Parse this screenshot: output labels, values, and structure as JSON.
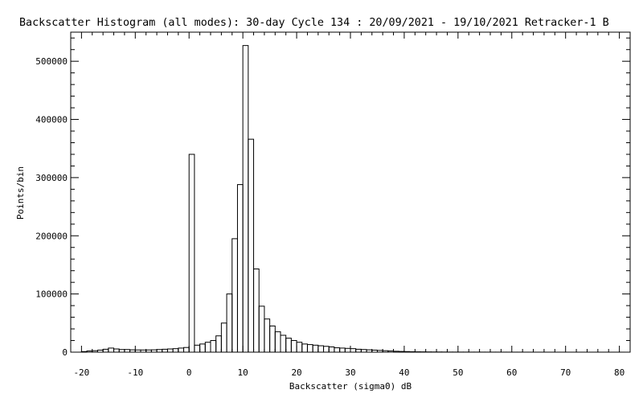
{
  "chart_data": {
    "type": "bar",
    "title": "Backscatter Histogram (all modes): 30-day Cycle 134 : 20/09/2021 - 19/10/2021 Retracker-1 B",
    "xlabel": "Backscatter (sigma0) dB",
    "ylabel": "Points/bin",
    "xlim": [
      -22,
      82
    ],
    "ylim": [
      0,
      550000
    ],
    "x_ticks": [
      -20,
      -10,
      0,
      10,
      20,
      30,
      40,
      50,
      60,
      70,
      80
    ],
    "x_tick_labels": [
      "-20",
      "-10",
      "0",
      "10",
      "20",
      "30",
      "40",
      "50",
      "60",
      "70",
      "80"
    ],
    "y_ticks": [
      0,
      100000,
      200000,
      300000,
      400000,
      500000
    ],
    "y_tick_labels": [
      "0",
      "100000",
      "200000",
      "300000",
      "400000",
      "500000"
    ],
    "bin_width": 1,
    "bins_x": [
      -20,
      -19,
      -18,
      -17,
      -16,
      -15,
      -14,
      -13,
      -12,
      -11,
      -10,
      -9,
      -8,
      -7,
      -6,
      -5,
      -4,
      -3,
      -2,
      -1,
      0,
      1,
      2,
      3,
      4,
      5,
      6,
      7,
      8,
      9,
      10,
      11,
      12,
      13,
      14,
      15,
      16,
      17,
      18,
      19,
      20,
      21,
      22,
      23,
      24,
      25,
      26,
      27,
      28,
      29,
      30,
      31,
      32,
      33,
      34,
      35,
      36,
      37,
      38,
      39,
      40,
      41,
      42,
      43,
      44,
      45,
      46,
      47,
      48,
      49,
      50,
      51,
      52,
      53,
      54,
      55,
      56,
      57,
      58,
      59,
      60,
      61,
      62,
      63,
      64,
      65,
      66,
      67,
      68,
      69,
      70,
      71,
      72,
      73,
      74,
      75,
      76,
      77,
      78,
      79,
      80
    ],
    "values": [
      1000,
      2000,
      2500,
      3500,
      5000,
      7000,
      5500,
      4500,
      4500,
      4000,
      3800,
      3700,
      3800,
      4000,
      4500,
      5000,
      5500,
      6000,
      7000,
      8000,
      340000,
      12000,
      14000,
      17000,
      20000,
      28000,
      50000,
      100000,
      195000,
      288000,
      527000,
      366000,
      143000,
      79000,
      57000,
      45000,
      35000,
      29000,
      24000,
      20000,
      17000,
      14000,
      13000,
      12000,
      11000,
      10000,
      9000,
      7500,
      7000,
      6500,
      6000,
      5000,
      4500,
      4000,
      3500,
      3000,
      2500,
      2000,
      1500,
      1200,
      1000,
      700,
      600,
      500,
      400,
      350,
      300,
      250,
      200,
      180,
      150,
      140,
      130,
      120,
      110,
      100,
      90,
      80,
      70,
      60,
      50,
      50,
      40,
      40,
      30,
      30,
      30,
      20,
      20,
      20,
      20,
      20,
      10,
      10,
      10,
      10,
      10,
      10,
      10,
      10,
      10
    ]
  }
}
